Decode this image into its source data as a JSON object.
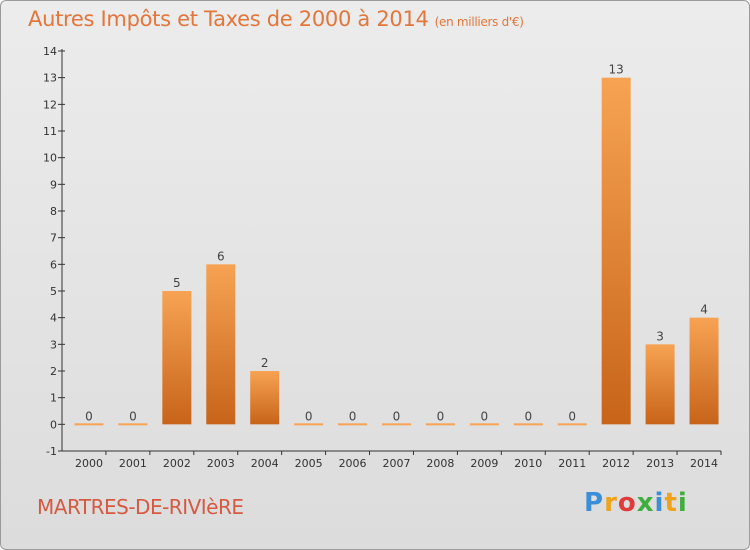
{
  "header": {
    "title": "Autres Impôts et Taxes de 2000 à 2014",
    "subtitle": "(en milliers d'€)"
  },
  "footer": {
    "commune": "MARTRES-DE-RIVIèRE",
    "brand_letters": [
      {
        "char": "P",
        "color": "#3a8fd8"
      },
      {
        "char": "r",
        "color": "#f0a21a"
      },
      {
        "char": "o",
        "color": "#e03a3a"
      },
      {
        "char": "x",
        "color": "#3fae3f"
      },
      {
        "char": "i",
        "color": "#3a8fd8"
      },
      {
        "char": "t",
        "color": "#f0a21a"
      },
      {
        "char": "i",
        "color": "#3fae3f"
      }
    ]
  },
  "colors": {
    "bar_light": "#f7a353",
    "bar_dark": "#c7641a",
    "title": "#e3763a",
    "commune": "#d65a42"
  },
  "chart_data": {
    "type": "bar",
    "categories": [
      "2000",
      "2001",
      "2002",
      "2003",
      "2004",
      "2005",
      "2006",
      "2007",
      "2008",
      "2009",
      "2010",
      "2011",
      "2012",
      "2013",
      "2014"
    ],
    "values": [
      0,
      0,
      5,
      6,
      2,
      0,
      0,
      0,
      0,
      0,
      0,
      0,
      13,
      3,
      4
    ],
    "data_labels": [
      "0",
      "0",
      "5",
      "6",
      "2",
      "0",
      "0",
      "0",
      "0",
      "0",
      "0",
      "0",
      "13",
      "3",
      "4"
    ],
    "y_ticks": [
      "-1",
      "0",
      "1",
      "2",
      "3",
      "4",
      "5",
      "6",
      "7",
      "8",
      "9",
      "10",
      "11",
      "12",
      "13",
      "14"
    ],
    "ylim": [
      -1,
      14
    ],
    "grid": false,
    "legend": "none"
  }
}
